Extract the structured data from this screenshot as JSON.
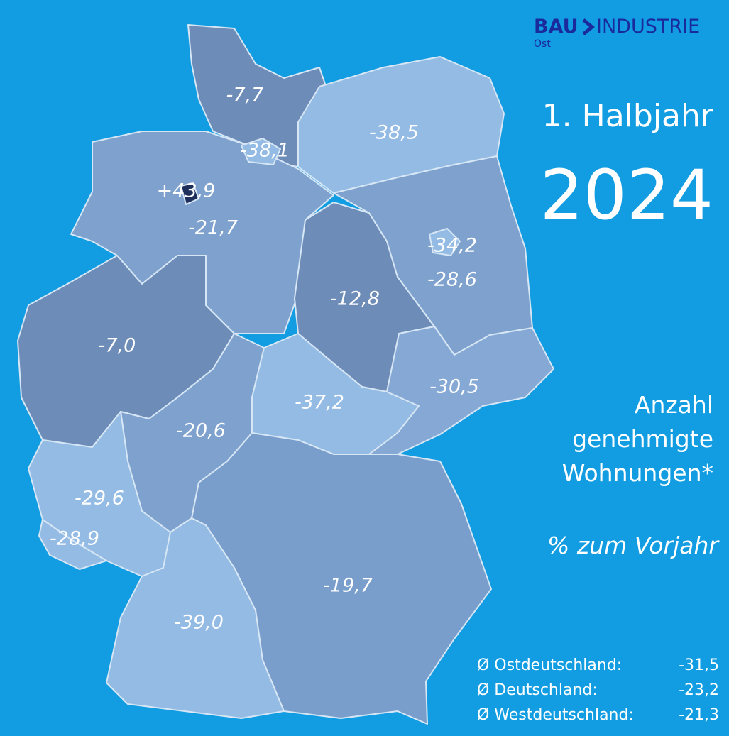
{
  "logo": {
    "brand": "BAU",
    "brand2": "INDUSTRIE",
    "sub": "Ost"
  },
  "title": {
    "line1": "1. Halbjahr",
    "year": "2024"
  },
  "subtitle": {
    "lines": [
      "Anzahl",
      "genehmigte",
      "Wohnungen*"
    ],
    "unit": "% zum Vorjahr"
  },
  "regions": [
    {
      "label": "-7,7",
      "color": "#6d8cb8"
    },
    {
      "label": "-38,5",
      "color": "#93bbe4"
    },
    {
      "label": "-21,7",
      "color": "#7ea2cd"
    },
    {
      "label": "-12,8",
      "color": "#6d8cb8"
    },
    {
      "label": "-28,6",
      "color": "#7ea2cd"
    },
    {
      "label": "-7,0",
      "color": "#6d8cb8"
    },
    {
      "label": "-20,6",
      "color": "#7ea2cd"
    },
    {
      "label": "-37,2",
      "color": "#93bbe4"
    },
    {
      "label": "-30,5",
      "color": "#85a9d4"
    },
    {
      "label": "-29,6",
      "color": "#93bbe4"
    },
    {
      "label": "-28,9",
      "color": "#93bbe4"
    },
    {
      "label": "-19,7",
      "color": "#7a9ecb"
    },
    {
      "label": "-39,0",
      "color": "#93bbe4"
    },
    {
      "label": "-38,1",
      "color": "#93bbe4"
    },
    {
      "label": "+43,9",
      "color": "#1d2f5a"
    },
    {
      "label": "-34,2",
      "color": "#93bbe4"
    }
  ],
  "averages": [
    {
      "label": "Ø Ostdeutschland:",
      "value": "-31,5"
    },
    {
      "label": "Ø Deutschland:",
      "value": "-23,2"
    },
    {
      "label": "Ø Westdeutschland:",
      "value": "-21,3"
    }
  ]
}
